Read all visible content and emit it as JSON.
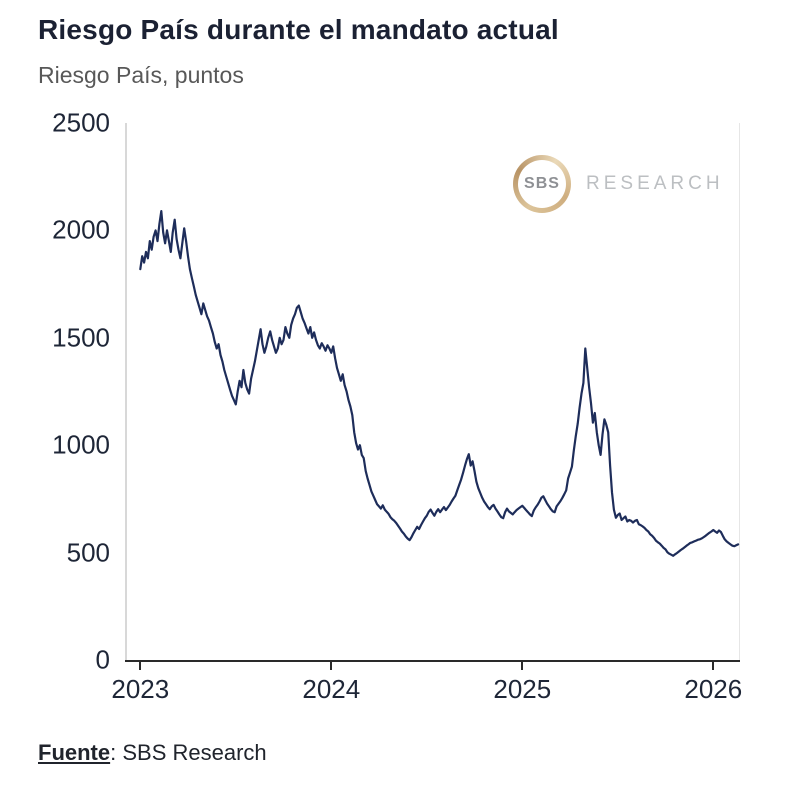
{
  "page": {
    "title": "Riesgo País durante el mandato actual",
    "subtitle": "Riesgo País, puntos"
  },
  "logo": {
    "circle_text": "SBS",
    "word": "RESEARCH",
    "ring_color": "#c9a974"
  },
  "footer": {
    "label": "Fuente",
    "text": ": SBS Research"
  },
  "colors": {
    "line": "#1e2d5a",
    "axis": "#2a2a2a",
    "axis_label": "#1e2637"
  },
  "chart_data": {
    "type": "line",
    "title": "Riesgo País durante el mandato actual",
    "ylabel": "Riesgo País, puntos",
    "series_name": "Riesgo País",
    "grid": false,
    "legend": false,
    "xlim": [
      2022.92,
      2026.14
    ],
    "ylim": [
      0,
      2500
    ],
    "yticks": [
      0,
      500,
      1000,
      1500,
      2000,
      2500
    ],
    "xticks": [
      2023,
      2024,
      2025,
      2026
    ],
    "line_color": "#1e2d5a",
    "x_start": 2023.0,
    "x_step": 0.01,
    "values": [
      1820,
      1880,
      1850,
      1900,
      1870,
      1950,
      1910,
      1970,
      2000,
      1950,
      2030,
      2090,
      1990,
      1940,
      2000,
      1950,
      1900,
      1990,
      2050,
      1960,
      1910,
      1870,
      1940,
      2010,
      1950,
      1880,
      1820,
      1780,
      1740,
      1700,
      1670,
      1640,
      1610,
      1660,
      1630,
      1600,
      1580,
      1550,
      1520,
      1480,
      1450,
      1470,
      1420,
      1390,
      1350,
      1320,
      1290,
      1260,
      1230,
      1210,
      1190,
      1250,
      1300,
      1270,
      1350,
      1290,
      1260,
      1240,
      1310,
      1350,
      1390,
      1440,
      1490,
      1540,
      1470,
      1430,
      1460,
      1500,
      1530,
      1490,
      1460,
      1430,
      1450,
      1500,
      1470,
      1490,
      1550,
      1520,
      1500,
      1560,
      1590,
      1610,
      1640,
      1650,
      1620,
      1590,
      1570,
      1545,
      1520,
      1550,
      1500,
      1525,
      1490,
      1465,
      1450,
      1475,
      1460,
      1440,
      1465,
      1450,
      1430,
      1460,
      1405,
      1360,
      1330,
      1300,
      1330,
      1280,
      1250,
      1210,
      1180,
      1140,
      1060,
      1010,
      980,
      1000,
      955,
      940,
      880,
      845,
      815,
      785,
      765,
      745,
      725,
      715,
      705,
      720,
      700,
      690,
      680,
      665,
      655,
      648,
      638,
      625,
      612,
      598,
      588,
      575,
      565,
      558,
      572,
      590,
      605,
      620,
      610,
      628,
      645,
      660,
      672,
      690,
      700,
      685,
      672,
      690,
      702,
      688,
      700,
      712,
      698,
      710,
      722,
      738,
      752,
      765,
      790,
      815,
      840,
      872,
      905,
      935,
      958,
      905,
      925,
      880,
      830,
      800,
      778,
      755,
      738,
      725,
      712,
      702,
      715,
      722,
      705,
      692,
      678,
      665,
      660,
      688,
      705,
      692,
      685,
      678,
      688,
      698,
      705,
      712,
      718,
      708,
      698,
      688,
      678,
      670,
      695,
      710,
      722,
      738,
      755,
      762,
      745,
      728,
      715,
      702,
      692,
      688,
      715,
      728,
      740,
      755,
      772,
      790,
      845,
      872,
      900,
      975,
      1040,
      1100,
      1175,
      1240,
      1290,
      1450,
      1360,
      1270,
      1195,
      1105,
      1150,
      1060,
      1000,
      955,
      1050,
      1120,
      1095,
      1060,
      905,
      780,
      700,
      662,
      675,
      682,
      652,
      660,
      668,
      645,
      652,
      648,
      640,
      648,
      652,
      632,
      628,
      622,
      615,
      605,
      598,
      585,
      578,
      568,
      555,
      548,
      542,
      532,
      522,
      515,
      502,
      495,
      490,
      485,
      492,
      498,
      505,
      512,
      518,
      525,
      532,
      538,
      545,
      548,
      552,
      556,
      560,
      562,
      566,
      572,
      578,
      585,
      592,
      598,
      605,
      598,
      592,
      603,
      596,
      578,
      562,
      552,
      545,
      538,
      532,
      530,
      534,
      538
    ]
  }
}
